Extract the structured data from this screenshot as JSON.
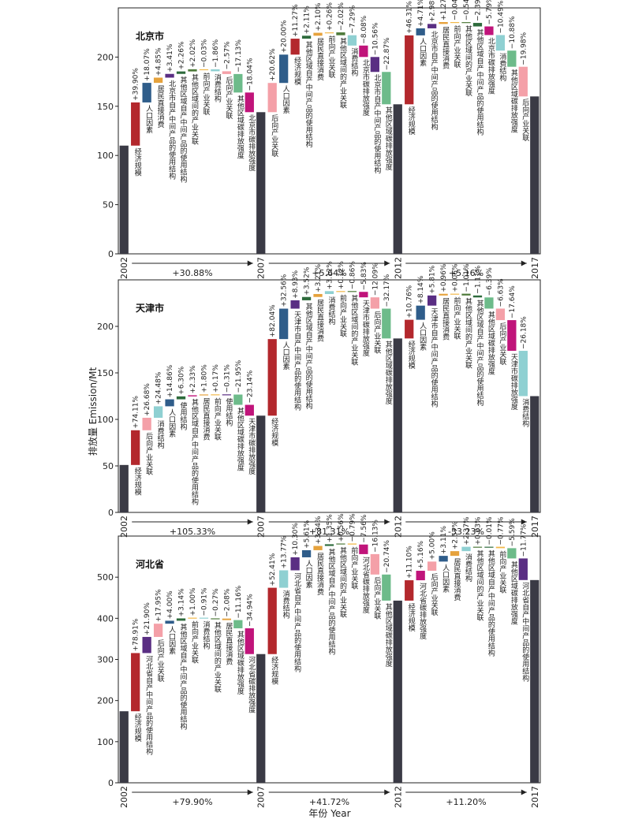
{
  "ylabel": "排放量 Emission/Mt",
  "xlabel": "年份 Year",
  "colors": {
    "total": "#3a3a45",
    "经济规模": "#b3282d",
    "人口因素": "#2f5d8a",
    "居民直接消费": "#e6a23c",
    "后向产业关联": "#f4a0a8",
    "前向产业关联": "#f2b94a",
    "消费结构": "#8fd0d2",
    "其他区域间的产业关联": "#4e7a3a",
    "其他区域碳排放强度": "#6dbb8a",
    "其他区域自产中间产品的使用结构": "#2e6b3c",
    "本地自产中间产品的使用结构": "#5a2e83",
    "本地碳排放强度": "#c0147a"
  },
  "chart_data": [
    {
      "type": "waterfall",
      "title": "北京市",
      "ylim": [
        0,
        250
      ],
      "yticks": [
        0,
        50,
        100,
        150,
        200
      ],
      "years": [
        "2002",
        "2007",
        "2012",
        "2017"
      ],
      "totals": [
        110,
        144,
        152,
        160
      ],
      "period_changes": [
        "+30.88%",
        "+5.64%",
        "+5.16%"
      ],
      "periods": [
        [
          {
            "label": "经济规模",
            "pct": "+39.90%",
            "value": 43.9,
            "cat": "经济规模"
          },
          {
            "label": "人口因素",
            "pct": "+18.07%",
            "value": 19.9,
            "cat": "人口因素"
          },
          {
            "label": "居民直接消费",
            "pct": "+4.85%",
            "value": 5.3,
            "cat": "居民直接消费"
          },
          {
            "label": "北京市自产中间产品的使用结构",
            "pct": "+3.41%",
            "value": 3.8,
            "cat": "本地自产中间产品的使用结构"
          },
          {
            "label": "其他区域自产中间产品的使用结构",
            "pct": "+2.26%",
            "value": 2.5,
            "cat": "其他区域自产中间产品的使用结构"
          },
          {
            "label": "其他区域间的产业关联",
            "pct": "+2.02%",
            "value": 2.2,
            "cat": "其他区域间的产业关联"
          },
          {
            "label": "前向产业关联",
            "pct": "−0.03%",
            "value": -0.03,
            "cat": "前向产业关联"
          },
          {
            "label": "消费结构",
            "pct": "−1.86%",
            "value": -2.0,
            "cat": "消费结构"
          },
          {
            "label": "后向产业关联",
            "pct": "−2.57%",
            "value": -2.8,
            "cat": "后向产业关联"
          },
          {
            "label": "其他区域碳排放强度",
            "pct": "−17.13%",
            "value": -18.8,
            "cat": "其他区域碳排放强度"
          },
          {
            "label": "北京市碳排放强度",
            "pct": "−18.04%",
            "value": -19.97,
            "cat": "本地碳排放强度"
          }
        ],
        [
          {
            "label": "后向产业关联",
            "pct": "+20.62%",
            "value": 29.7,
            "cat": "后向产业关联"
          },
          {
            "label": "人口因素",
            "pct": "+20.00%",
            "value": 28.8,
            "cat": "人口因素"
          },
          {
            "label": "经济规模",
            "pct": "+11.27%",
            "value": 16.2,
            "cat": "经济规模"
          },
          {
            "label": "其他区域自产中间产品的使用结构",
            "pct": "+2.11%",
            "value": 3.0,
            "cat": "其他区域自产中间产品的使用结构"
          },
          {
            "label": "居民直接消费",
            "pct": "+2.10%",
            "value": 3.0,
            "cat": "居民直接消费"
          },
          {
            "label": "前向产业关联",
            "pct": "+0.26%",
            "value": 0.4,
            "cat": "前向产业关联"
          },
          {
            "label": "其他区域间的产业关联",
            "pct": "−2.02%",
            "value": -2.9,
            "cat": "其他区域间的产业关联"
          },
          {
            "label": "消费结构",
            "pct": "−7.29%",
            "value": -10.5,
            "cat": "消费结构"
          },
          {
            "label": "北京市碳排放强度",
            "pct": "−8.08%",
            "value": -11.6,
            "cat": "本地碳排放强度"
          },
          {
            "label": "北京市自产中间产品的使用结构",
            "pct": "−10.56%",
            "value": -15.2,
            "cat": "本地自产中间产品的使用结构"
          },
          {
            "label": "其他区域碳排放强度",
            "pct": "−22.87%",
            "value": -32.9,
            "cat": "其他区域碳排放强度"
          }
        ],
        [
          {
            "label": "经济规模",
            "pct": "+46.31%",
            "value": 70.4,
            "cat": "经济规模"
          },
          {
            "label": "人口因素",
            "pct": "+4.71%",
            "value": 7.2,
            "cat": "人口因素"
          },
          {
            "label": "北京市自产中间产品的使用结构",
            "pct": "+2.98%",
            "value": 4.5,
            "cat": "本地自产中间产品的使用结构"
          },
          {
            "label": "居民直接消费",
            "pct": "+1.27%",
            "value": 1.9,
            "cat": "居民直接消费"
          },
          {
            "label": "前向产业关联",
            "pct": "−0.04%",
            "value": -0.06,
            "cat": "前向产业关联"
          },
          {
            "label": "其他区域间的产业关联",
            "pct": "−0.54%",
            "value": -0.8,
            "cat": "其他区域间的产业关联"
          },
          {
            "label": "其他区域自产中间产品的使用结构",
            "pct": "−2.39%",
            "value": -3.6,
            "cat": "其他区域自产中间产品的使用结构"
          },
          {
            "label": "北京市碳排放强度",
            "pct": "−5.79%",
            "value": -8.8,
            "cat": "本地碳排放强度"
          },
          {
            "label": "消费结构",
            "pct": "−10.49%",
            "value": -15.9,
            "cat": "消费结构"
          },
          {
            "label": "其他区域碳排放强度",
            "pct": "−10.88%",
            "value": -16.5,
            "cat": "其他区域碳排放强度"
          },
          {
            "label": "后向产业关联",
            "pct": "−19.98%",
            "value": -30.3,
            "cat": "后向产业关联"
          }
        ]
      ]
    },
    {
      "type": "waterfall",
      "title": "天津市",
      "ylim": [
        0,
        250
      ],
      "yticks": [
        0,
        50,
        100,
        150,
        200
      ],
      "years": [
        "2002",
        "2007",
        "2012",
        "2017"
      ],
      "totals": [
        51,
        104,
        187,
        125
      ],
      "period_changes": [
        "+105.33%",
        "+81.31%",
        "-33.23%"
      ],
      "periods": [
        [
          {
            "label": "经济规模",
            "pct": "+74.11%",
            "value": 37.8,
            "cat": "经济规模"
          },
          {
            "label": "后向产业关联",
            "pct": "+26.68%",
            "value": 13.6,
            "cat": "后向产业关联"
          },
          {
            "label": "消费结构",
            "pct": "+24.48%",
            "value": 12.5,
            "cat": "消费结构"
          },
          {
            "label": "人口因素",
            "pct": "+14.86%",
            "value": 7.6,
            "cat": "人口因素"
          },
          {
            "label": "使用结构",
            "pct": "+6.30%",
            "value": 3.2,
            "cat": "其他区域自产中间产品的使用结构"
          },
          {
            "label": "其他区域自产中间产品的使用结构",
            "pct": "+2.33%",
            "value": 1.2,
            "cat": "本地碳排放强度"
          },
          {
            "label": "居民直接消费",
            "pct": "+1.80%",
            "value": 0.9,
            "cat": "居民直接消费"
          },
          {
            "label": "前向产业关联",
            "pct": "+0.17%",
            "value": 0.1,
            "cat": "前向产业关联"
          },
          {
            "label": "使用结构",
            "pct": "−0.31%",
            "value": -0.2,
            "cat": "本地自产中间产品的使用结构"
          },
          {
            "label": "其他区域碳排放强度",
            "pct": "−21.95%",
            "value": -11.2,
            "cat": "其他区域碳排放强度"
          },
          {
            "label": "天津市碳排放强度",
            "pct": "−23.14%",
            "value": -11.8,
            "cat": "本地碳排放强度"
          }
        ],
        [
          {
            "label": "经济规模",
            "pct": "+82.04%",
            "value": 85.3,
            "cat": "经济规模"
          },
          {
            "label": "人口因素",
            "pct": "+32.56%",
            "value": 33.9,
            "cat": "人口因素"
          },
          {
            "label": "天津市自产中间产品的使用结构",
            "pct": "+8.93%",
            "value": 9.3,
            "cat": "本地自产中间产品的使用结构"
          },
          {
            "label": "其他区域自产中间产品的使用结构",
            "pct": "+3.52%",
            "value": 3.7,
            "cat": "其他区域自产中间产品的使用结构"
          },
          {
            "label": "居民直接消费",
            "pct": "+3.21%",
            "value": 3.3,
            "cat": "居民直接消费"
          },
          {
            "label": "消费结构",
            "pct": "+3.12%",
            "value": 3.2,
            "cat": "消费结构"
          },
          {
            "label": "前向产业关联",
            "pct": "+0.12%",
            "value": 0.1,
            "cat": "前向产业关联"
          },
          {
            "label": "其他区域间的产业关联",
            "pct": "−0.86%",
            "value": -0.9,
            "cat": "其他区域间的产业关联"
          },
          {
            "label": "天津市碳排放强度",
            "pct": "−5.83%",
            "value": -6.1,
            "cat": "本地碳排放强度"
          },
          {
            "label": "后向产业关联",
            "pct": "−12.09%",
            "value": -12.6,
            "cat": "后向产业关联"
          },
          {
            "label": "其他区域碳排放强度",
            "pct": "−32.17%",
            "value": -33.2,
            "cat": "其他区域碳排放强度"
          }
        ],
        [
          {
            "label": "经济规模",
            "pct": "+10.76%",
            "value": 20.1,
            "cat": "经济规模"
          },
          {
            "label": "人口因素",
            "pct": "+8.14%",
            "value": 15.2,
            "cat": "人口因素"
          },
          {
            "label": "天津市自产中间产品的使用结构",
            "pct": "+5.81%",
            "value": 10.9,
            "cat": "本地自产中间产品的使用结构"
          },
          {
            "label": "居民直接消费",
            "pct": "+0.96%",
            "value": 1.8,
            "cat": "居民直接消费"
          },
          {
            "label": "前向产业关联",
            "pct": "+0.06%",
            "value": 0.1,
            "cat": "前向产业关联"
          },
          {
            "label": "其他区域间的产业关联",
            "pct": "−1.01%",
            "value": -1.9,
            "cat": "其他区域间的产业关联"
          },
          {
            "label": "其他区域自产中间产品的使用结构",
            "pct": "−1.11%",
            "value": -2.1,
            "cat": "其他区域自产中间产品的使用结构"
          },
          {
            "label": "其他区域碳排放强度",
            "pct": "−6.39%",
            "value": -12.0,
            "cat": "其他区域碳排放强度"
          },
          {
            "label": "后向产业关联",
            "pct": "−6.63%",
            "value": -12.4,
            "cat": "后向产业关联"
          },
          {
            "label": "天津市碳排放强度",
            "pct": "−17.64%",
            "value": -33.0,
            "cat": "本地碳排放强度"
          },
          {
            "label": "消费结构",
            "pct": "−26.18%",
            "value": -48.7,
            "cat": "消费结构"
          }
        ]
      ]
    },
    {
      "type": "waterfall",
      "title": "河北省",
      "ylim": [
        0,
        600
      ],
      "yticks": [
        0,
        100,
        200,
        300,
        400,
        500
      ],
      "years": [
        "2002",
        "2007",
        "2012",
        "2017"
      ],
      "totals": [
        174,
        313,
        443,
        493
      ],
      "period_changes": [
        "+79.90%",
        "+41.72%",
        "+11.20%"
      ],
      "periods": [
        [
          {
            "label": "经济规模",
            "pct": "+78.91%",
            "value": 137.3,
            "cat": "经济规模"
          },
          {
            "label": "河北省自产中间产品的使用结构",
            "pct": "+21.90%",
            "value": 38.1,
            "cat": "本地自产中间产品的使用结构"
          },
          {
            "label": "后向产业关联",
            "pct": "+17.95%",
            "value": 31.2,
            "cat": "后向产业关联"
          },
          {
            "label": "人口因素",
            "pct": "+4.00%",
            "value": 7.0,
            "cat": "人口因素"
          },
          {
            "label": "其他区域自产中间产品的使用结构",
            "pct": "+3.14%",
            "value": 5.5,
            "cat": "其他区域自产中间产品的使用结构"
          },
          {
            "label": "前向产业关联",
            "pct": "+1.00%",
            "value": 1.7,
            "cat": "前向产业关联"
          },
          {
            "label": "消费结构",
            "pct": "−0.91%",
            "value": -1.6,
            "cat": "消费结构"
          },
          {
            "label": "其他区域间的产业关联",
            "pct": "−0.27%",
            "value": -0.5,
            "cat": "其他区域间的产业关联"
          },
          {
            "label": "居民直接消费",
            "pct": "−2.08%",
            "value": -3.6,
            "cat": "居民直接消费"
          },
          {
            "label": "其他区域碳排放强度",
            "pct": "−11.16%",
            "value": -19.4,
            "cat": "其他区域碳排放强度"
          },
          {
            "label": "河北省碳排放强度",
            "pct": "−34.94%",
            "value": -60.8,
            "cat": "本地碳排放强度"
          }
        ],
        [
          {
            "label": "经济规模",
            "pct": "+52.41%",
            "value": 164.0,
            "cat": "经济规模"
          },
          {
            "label": "消费结构",
            "pct": "+13.77%",
            "value": 43.1,
            "cat": "消费结构"
          },
          {
            "label": "河北省自产中间产品的使用结构",
            "pct": "+10.30%",
            "value": 32.2,
            "cat": "本地自产中间产品的使用结构"
          },
          {
            "label": "人口因素",
            "pct": "+5.61%",
            "value": 17.6,
            "cat": "人口因素"
          },
          {
            "label": "居民直接消费",
            "pct": "+3.34%",
            "value": 10.5,
            "cat": "居民直接消费"
          },
          {
            "label": "其他区域自产中间产品的使用结构",
            "pct": "+1.35%",
            "value": 4.2,
            "cat": "其他区域自产中间产品的使用结构"
          },
          {
            "label": "其他区域间的产业关联",
            "pct": "+0.56%",
            "value": 1.8,
            "cat": "其他区域间的产业关联"
          },
          {
            "label": "前向产业关联",
            "pct": "−0.79%",
            "value": -2.5,
            "cat": "前向产业关联"
          },
          {
            "label": "河北省碳排放强度",
            "pct": "−7.56%",
            "value": -23.7,
            "cat": "本地碳排放强度"
          },
          {
            "label": "后向产业关联",
            "pct": "−16.13%",
            "value": -50.5,
            "cat": "后向产业关联"
          },
          {
            "label": "其他区域碳排放强度",
            "pct": "−20.74%",
            "value": -64.5,
            "cat": "其他区域碳排放强度"
          }
        ],
        [
          {
            "label": "经济规模",
            "pct": "+11.10%",
            "value": 49.2,
            "cat": "经济规模"
          },
          {
            "label": "河北省碳排放强度",
            "pct": "+5.16%",
            "value": 22.9,
            "cat": "本地碳排放强度"
          },
          {
            "label": "后向产业关联",
            "pct": "+5.00%",
            "value": 22.2,
            "cat": "后向产业关联"
          },
          {
            "label": "人口因素",
            "pct": "+3.11%",
            "value": 13.8,
            "cat": "人口因素"
          },
          {
            "label": "居民直接消费",
            "pct": "+2.57%",
            "value": 11.4,
            "cat": "居民直接消费"
          },
          {
            "label": "消费结构",
            "pct": "+2.37%",
            "value": 10.5,
            "cat": "消费结构"
          },
          {
            "label": "其他区域间的产业关联",
            "pct": "+0.03%",
            "value": 0.1,
            "cat": "其他区域间的产业关联"
          },
          {
            "label": "其他区域自产中间产品的使用结构",
            "pct": "−0.01%",
            "value": -0.04,
            "cat": "其他区域自产中间产品的使用结构"
          },
          {
            "label": "前向产业关联",
            "pct": "−0.77%",
            "value": -3.4,
            "cat": "前向产业关联"
          },
          {
            "label": "其他区域碳排放强度",
            "pct": "−5.59%",
            "value": -24.8,
            "cat": "其他区域碳排放强度"
          },
          {
            "label": "河北省自产中间产品的使用结构",
            "pct": "−11.77%",
            "value": -52.2,
            "cat": "本地自产中间产品的使用结构"
          }
        ]
      ]
    }
  ]
}
